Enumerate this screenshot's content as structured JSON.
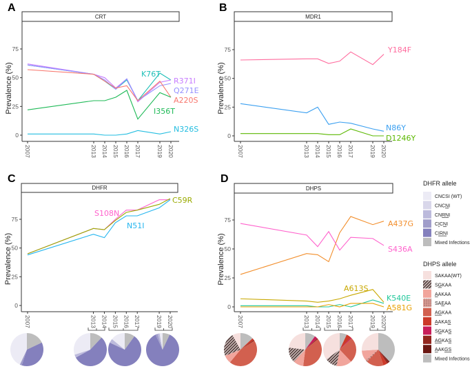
{
  "y_axis_title": "Prevalence (%)",
  "chart_data": [
    {
      "panel": "A",
      "strip_title": "CRT",
      "type": "line",
      "x": [
        2007,
        2013,
        2014,
        2015,
        2016,
        2017,
        2019,
        2020
      ],
      "yticks": [
        0,
        25,
        50,
        75
      ],
      "ylim": [
        0,
        100
      ],
      "grid": false,
      "series": [
        {
          "name": "K76T",
          "color": "#1fbfb8",
          "values": [
            61,
            53,
            47,
            40,
            48,
            30,
            54,
            48
          ]
        },
        {
          "name": "R371I",
          "color": "#c77cff",
          "values": [
            62,
            53,
            50,
            41,
            49,
            29,
            46,
            48
          ]
        },
        {
          "name": "Q271E",
          "color": "#9590ff",
          "values": [
            61,
            53,
            48,
            40,
            49,
            30,
            43,
            45
          ]
        },
        {
          "name": "A220S",
          "color": "#f8766d",
          "values": [
            57,
            53,
            47,
            41,
            43,
            30,
            47,
            33
          ]
        },
        {
          "name": "I356T",
          "color": "#1db956",
          "values": [
            22,
            30,
            30,
            33,
            39,
            14,
            37,
            33
          ]
        },
        {
          "name": "N326S",
          "color": "#22bde0",
          "values": [
            1,
            1,
            0,
            0,
            1,
            4,
            1,
            3
          ]
        }
      ]
    },
    {
      "panel": "B",
      "strip_title": "MDR1",
      "type": "line",
      "x": [
        2007,
        2013,
        2014,
        2015,
        2016,
        2017,
        2019,
        2020
      ],
      "yticks": [
        0,
        25,
        50,
        75
      ],
      "ylim": [
        0,
        100
      ],
      "grid": false,
      "series": [
        {
          "name": "Y184F",
          "color": "#ff6c9e",
          "values": [
            66,
            67,
            67,
            63,
            65,
            73,
            62,
            71
          ]
        },
        {
          "name": "N86Y",
          "color": "#3a9ff0",
          "values": [
            28,
            20,
            25,
            10,
            12,
            11,
            6,
            4
          ]
        },
        {
          "name": "D1246Y",
          "color": "#5bb800",
          "values": [
            2,
            2,
            2,
            1,
            1,
            6,
            0,
            0
          ]
        }
      ]
    },
    {
      "panel": "C",
      "strip_title": "DHFR",
      "type": "line",
      "x": [
        2007,
        2013,
        2014,
        2015,
        2016,
        2017,
        2019,
        2020
      ],
      "yticks": [
        0,
        25,
        50,
        75
      ],
      "ylim": [
        0,
        100
      ],
      "grid": false,
      "series": [
        {
          "name": "S108N",
          "color": "#ff61cc",
          "values": [
            45,
            67,
            66,
            75,
            83,
            83,
            92,
            92
          ]
        },
        {
          "name": "N51I",
          "color": "#22b5ef",
          "values": [
            44,
            62,
            59,
            72,
            78,
            78,
            85,
            92
          ]
        },
        {
          "name": "C59R",
          "color": "#9aaa00",
          "values": [
            45,
            67,
            66,
            74,
            81,
            83,
            88,
            93
          ]
        }
      ],
      "pie_groups": [
        "2007",
        "2013-2014",
        "2015-2017",
        "2019-2020"
      ],
      "pies": [
        {
          "group": "2007",
          "slices": {
            "Mixed Infections": 0.18,
            "CIRNI": 0.37,
            "CICNI": 0.02,
            "CNCSI (WT)": 0.43
          }
        },
        {
          "group": "2013-2014",
          "slices": {
            "Mixed Infections": 0.12,
            "CIRNI": 0.55,
            "CNRNI": 0.03,
            "CNCSI (WT)": 0.3
          }
        },
        {
          "group": "2015-2017",
          "slices": {
            "Mixed Infections": 0.1,
            "CIRNI": 0.72,
            "CNRNI": 0.04,
            "CNCSI (WT)": 0.14
          }
        },
        {
          "group": "2019-2020",
          "slices": {
            "Mixed Infections": 0.07,
            "CIRNI": 0.86,
            "CICNI": 0.02,
            "CNRNI": 0.02,
            "CNCSI (WT)": 0.03
          }
        }
      ]
    },
    {
      "panel": "D",
      "strip_title": "DHPS",
      "type": "line",
      "x": [
        2007,
        2013,
        2014,
        2015,
        2016,
        2017,
        2019,
        2020
      ],
      "yticks": [
        0,
        25,
        50,
        75
      ],
      "ylim": [
        0,
        100
      ],
      "grid": false,
      "series": [
        {
          "name": "A437G",
          "color": "#f28e2b",
          "values": [
            28,
            46,
            45,
            39,
            64,
            78,
            71,
            74
          ]
        },
        {
          "name": "S436A",
          "color": "#ff61cc",
          "values": [
            72,
            62,
            52,
            65,
            49,
            60,
            59,
            53
          ]
        },
        {
          "name": "A613S",
          "color": "#c8a800",
          "values": [
            7,
            5,
            4,
            5,
            7,
            10,
            15,
            4
          ]
        },
        {
          "name": "K540E",
          "color": "#1fc79a",
          "values": [
            1,
            1,
            0,
            0,
            2,
            0,
            6,
            3
          ]
        },
        {
          "name": "A581G",
          "color": "#e8a000",
          "values": [
            0,
            0,
            0,
            2,
            0,
            3,
            3,
            0
          ]
        }
      ],
      "pies": [
        {
          "group": "2007",
          "slices": {
            "Mixed Infections": 0.13,
            "AAKAS": 0.02,
            "AGKAS": 0.01,
            "AGKAA": 0.45,
            "AAKAA": 0.08,
            "SGKAA": 0.23,
            "SAKAA(WT)": 0.08
          }
        },
        {
          "group": "2013-2014",
          "slices": {
            "Mixed Infections": 0.1,
            "SGKAS": 0.03,
            "AGKAS": 0.01,
            "AGKAA": 0.38,
            "AAKAA": 0.1,
            "SGKAA": 0.15,
            "SAKAA(WT)": 0.23
          }
        },
        {
          "group": "2015-2017",
          "slices": {
            "Mixed Infections": 0.07,
            "AAKAS": 0.05,
            "SGKAS": 0.01,
            "AGKAA": 0.25,
            "AAKAA": 0.15,
            "SGKAA": 0.12,
            "SAKAA(WT)": 0.35
          }
        },
        {
          "group": "2019-2020",
          "slices": {
            "Mixed Infections": 0.38,
            "AAKGS": 0.01,
            "AGKAS": 0.02,
            "AAKAS": 0.04,
            "AGKAA": 0.17,
            "SAEAA": 0.02,
            "AAKAA": 0.1,
            "SAKAA(WT)": 0.26
          }
        }
      ]
    }
  ],
  "legends": {
    "dhfr": {
      "title": "DHFR allele",
      "items": [
        {
          "label": "CNCSI (WT)",
          "underline": [],
          "color": "#ecebf5"
        },
        {
          "label": "CNCNI",
          "underline": [
            3
          ],
          "color": "#d9d7ea"
        },
        {
          "label": "CNRNI",
          "underline": [
            2,
            3
          ],
          "color": "#bcbadc"
        },
        {
          "label": "CICNI",
          "underline": [
            1,
            3
          ],
          "color": "#a09dca"
        },
        {
          "label": "CIRNI",
          "underline": [
            1,
            2,
            3
          ],
          "color": "#8480bd"
        },
        {
          "label": "Mixed Infections",
          "underline": [],
          "color": "#bdbdbd"
        }
      ]
    },
    "dhps": {
      "title": "DHPS allele",
      "items": [
        {
          "label": "SAKAA(WT)",
          "underline": [],
          "color": "#f6e0de",
          "pattern": "none"
        },
        {
          "label": "SGKAA",
          "underline": [
            1
          ],
          "color": "#8a6f6c",
          "pattern": "hatch"
        },
        {
          "label": "AAKAA",
          "underline": [
            0
          ],
          "color": "#f1a59c",
          "pattern": "none"
        },
        {
          "label": "SAEAA",
          "underline": [
            2
          ],
          "color": "#d9928a",
          "pattern": "dots"
        },
        {
          "label": "AGKAA",
          "underline": [
            0,
            1
          ],
          "color": "#d2604f",
          "pattern": "none"
        },
        {
          "label": "AAKAS",
          "underline": [
            0,
            4
          ],
          "color": "#cc3a2a",
          "pattern": "none"
        },
        {
          "label": "SGKAS",
          "underline": [
            1,
            4
          ],
          "color": "#c81e5a",
          "pattern": "none"
        },
        {
          "label": "AGKAS",
          "underline": [
            0,
            1,
            4
          ],
          "color": "#92261e",
          "pattern": "none"
        },
        {
          "label": "AAKGS",
          "underline": [
            0,
            3,
            4
          ],
          "color": "#6a1712",
          "pattern": "none"
        },
        {
          "label": "Mixed Infections",
          "underline": [],
          "color": "#bdbdbd",
          "pattern": "none"
        }
      ]
    }
  }
}
